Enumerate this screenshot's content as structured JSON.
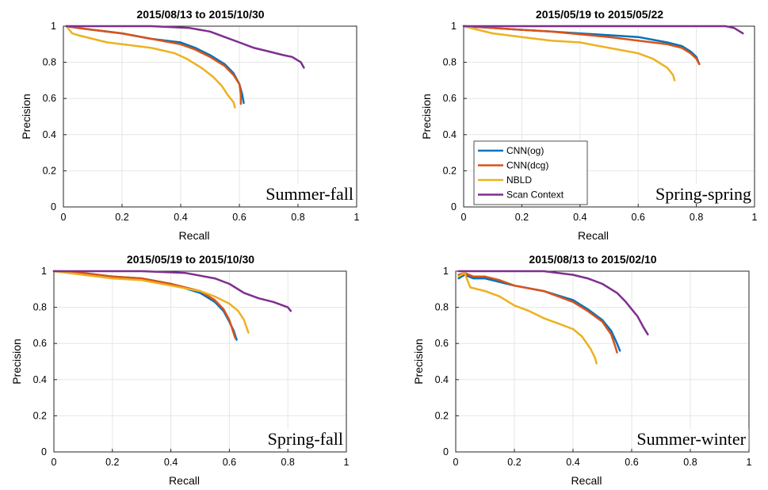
{
  "colors": {
    "cnn_og": "#0072BD",
    "cnn_dcg": "#D95319",
    "nbld": "#EDB120",
    "scan_context": "#7E2F8E",
    "grid": "#e6e6e6",
    "axis": "#262626"
  },
  "chart_data": [
    {
      "type": "line",
      "title": "2015/08/13 to 2015/10/30",
      "annotation": "Summer-fall",
      "xlabel": "Recall",
      "ylabel": "Precision",
      "xlim": [
        0,
        1
      ],
      "ylim": [
        0,
        1
      ],
      "xticks": [
        "0",
        "0.2",
        "0.4",
        "0.6",
        "0.8",
        "1"
      ],
      "yticks": [
        "0",
        "0.2",
        "0.4",
        "0.6",
        "0.8",
        "1"
      ],
      "legend": null,
      "series": [
        {
          "name": "CNN(og)",
          "color_key": "cnn_og",
          "points": [
            [
              0.01,
              1.0
            ],
            [
              0.05,
              0.99
            ],
            [
              0.1,
              0.98
            ],
            [
              0.2,
              0.96
            ],
            [
              0.3,
              0.93
            ],
            [
              0.4,
              0.91
            ],
            [
              0.45,
              0.88
            ],
            [
              0.5,
              0.84
            ],
            [
              0.55,
              0.79
            ],
            [
              0.58,
              0.74
            ],
            [
              0.6,
              0.68
            ],
            [
              0.61,
              0.62
            ],
            [
              0.615,
              0.575
            ]
          ]
        },
        {
          "name": "CNN(dcg)",
          "color_key": "cnn_dcg",
          "points": [
            [
              0.01,
              1.0
            ],
            [
              0.05,
              0.99
            ],
            [
              0.1,
              0.98
            ],
            [
              0.2,
              0.96
            ],
            [
              0.3,
              0.93
            ],
            [
              0.4,
              0.9
            ],
            [
              0.45,
              0.87
            ],
            [
              0.5,
              0.83
            ],
            [
              0.55,
              0.78
            ],
            [
              0.58,
              0.73
            ],
            [
              0.6,
              0.68
            ],
            [
              0.605,
              0.62
            ],
            [
              0.605,
              0.57
            ]
          ]
        },
        {
          "name": "NBLD",
          "color_key": "nbld",
          "points": [
            [
              0.01,
              1.0
            ],
            [
              0.03,
              0.96
            ],
            [
              0.05,
              0.95
            ],
            [
              0.1,
              0.93
            ],
            [
              0.15,
              0.91
            ],
            [
              0.2,
              0.9
            ],
            [
              0.3,
              0.88
            ],
            [
              0.38,
              0.85
            ],
            [
              0.42,
              0.82
            ],
            [
              0.47,
              0.77
            ],
            [
              0.51,
              0.72
            ],
            [
              0.54,
              0.67
            ],
            [
              0.56,
              0.62
            ],
            [
              0.58,
              0.58
            ],
            [
              0.585,
              0.55
            ]
          ]
        },
        {
          "name": "Scan Context",
          "color_key": "scan_context",
          "points": [
            [
              0.01,
              1.0
            ],
            [
              0.3,
              1.0
            ],
            [
              0.43,
              0.99
            ],
            [
              0.5,
              0.97
            ],
            [
              0.55,
              0.94
            ],
            [
              0.6,
              0.91
            ],
            [
              0.65,
              0.88
            ],
            [
              0.7,
              0.86
            ],
            [
              0.75,
              0.84
            ],
            [
              0.78,
              0.83
            ],
            [
              0.81,
              0.8
            ],
            [
              0.82,
              0.77
            ]
          ]
        }
      ]
    },
    {
      "type": "line",
      "title": "2015/05/19 to 2015/05/22",
      "annotation": "Spring-spring",
      "xlabel": "Recall",
      "ylabel": "Precision",
      "xlim": [
        0,
        1
      ],
      "ylim": [
        0,
        1
      ],
      "xticks": [
        "0",
        "0.2",
        "0.4",
        "0.6",
        "0.8",
        "1"
      ],
      "yticks": [
        "0",
        "0.2",
        "0.4",
        "0.6",
        "0.8",
        "1"
      ],
      "legend": "center-left",
      "series": [
        {
          "name": "CNN(og)",
          "color_key": "cnn_og",
          "points": [
            [
              0.0,
              1.0
            ],
            [
              0.1,
              0.99
            ],
            [
              0.2,
              0.98
            ],
            [
              0.3,
              0.97
            ],
            [
              0.4,
              0.96
            ],
            [
              0.5,
              0.95
            ],
            [
              0.6,
              0.94
            ],
            [
              0.7,
              0.91
            ],
            [
              0.75,
              0.89
            ],
            [
              0.78,
              0.86
            ],
            [
              0.8,
              0.83
            ],
            [
              0.81,
              0.79
            ]
          ]
        },
        {
          "name": "CNN(dcg)",
          "color_key": "cnn_dcg",
          "points": [
            [
              0.0,
              1.0
            ],
            [
              0.1,
              0.99
            ],
            [
              0.2,
              0.98
            ],
            [
              0.3,
              0.97
            ],
            [
              0.4,
              0.955
            ],
            [
              0.5,
              0.94
            ],
            [
              0.6,
              0.92
            ],
            [
              0.7,
              0.9
            ],
            [
              0.75,
              0.88
            ],
            [
              0.78,
              0.85
            ],
            [
              0.8,
              0.82
            ],
            [
              0.81,
              0.79
            ]
          ]
        },
        {
          "name": "NBLD",
          "color_key": "nbld",
          "points": [
            [
              0.0,
              1.0
            ],
            [
              0.05,
              0.98
            ],
            [
              0.1,
              0.96
            ],
            [
              0.2,
              0.94
            ],
            [
              0.3,
              0.92
            ],
            [
              0.4,
              0.91
            ],
            [
              0.5,
              0.88
            ],
            [
              0.6,
              0.85
            ],
            [
              0.65,
              0.82
            ],
            [
              0.7,
              0.77
            ],
            [
              0.72,
              0.73
            ],
            [
              0.725,
              0.7
            ]
          ]
        },
        {
          "name": "Scan Context",
          "color_key": "scan_context",
          "points": [
            [
              0.0,
              1.0
            ],
            [
              0.9,
              1.0
            ],
            [
              0.93,
              0.99
            ],
            [
              0.95,
              0.97
            ],
            [
              0.96,
              0.96
            ]
          ]
        }
      ]
    },
    {
      "type": "line",
      "title": "2015/05/19 to 2015/10/30",
      "annotation": "Spring-fall",
      "xlabel": "Recall",
      "ylabel": "Precision",
      "xlim": [
        0,
        1
      ],
      "ylim": [
        0,
        1
      ],
      "xticks": [
        "0",
        "0.2",
        "0.4",
        "0.6",
        "0.8",
        "1"
      ],
      "yticks": [
        "0",
        "0.2",
        "0.4",
        "0.6",
        "0.8",
        "1"
      ],
      "legend": null,
      "series": [
        {
          "name": "CNN(og)",
          "color_key": "cnn_og",
          "points": [
            [
              0.0,
              1.0
            ],
            [
              0.1,
              0.99
            ],
            [
              0.2,
              0.97
            ],
            [
              0.3,
              0.96
            ],
            [
              0.4,
              0.93
            ],
            [
              0.5,
              0.88
            ],
            [
              0.55,
              0.83
            ],
            [
              0.58,
              0.78
            ],
            [
              0.6,
              0.72
            ],
            [
              0.615,
              0.67
            ],
            [
              0.625,
              0.62
            ]
          ]
        },
        {
          "name": "CNN(dcg)",
          "color_key": "cnn_dcg",
          "points": [
            [
              0.0,
              1.0
            ],
            [
              0.1,
              0.99
            ],
            [
              0.2,
              0.97
            ],
            [
              0.3,
              0.96
            ],
            [
              0.4,
              0.93
            ],
            [
              0.5,
              0.89
            ],
            [
              0.55,
              0.84
            ],
            [
              0.58,
              0.79
            ],
            [
              0.6,
              0.73
            ],
            [
              0.61,
              0.68
            ],
            [
              0.62,
              0.63
            ]
          ]
        },
        {
          "name": "NBLD",
          "color_key": "nbld",
          "points": [
            [
              0.0,
              1.0
            ],
            [
              0.1,
              0.98
            ],
            [
              0.2,
              0.96
            ],
            [
              0.3,
              0.95
            ],
            [
              0.4,
              0.92
            ],
            [
              0.5,
              0.89
            ],
            [
              0.55,
              0.86
            ],
            [
              0.6,
              0.82
            ],
            [
              0.63,
              0.78
            ],
            [
              0.65,
              0.73
            ],
            [
              0.665,
              0.66
            ]
          ]
        },
        {
          "name": "Scan Context",
          "color_key": "scan_context",
          "points": [
            [
              0.0,
              1.0
            ],
            [
              0.3,
              1.0
            ],
            [
              0.45,
              0.99
            ],
            [
              0.55,
              0.96
            ],
            [
              0.6,
              0.93
            ],
            [
              0.65,
              0.88
            ],
            [
              0.7,
              0.85
            ],
            [
              0.75,
              0.83
            ],
            [
              0.8,
              0.8
            ],
            [
              0.81,
              0.78
            ]
          ]
        }
      ]
    },
    {
      "type": "line",
      "title": "2015/08/13 to 2015/02/10",
      "annotation": "Summer-winter",
      "xlabel": "Recall",
      "ylabel": "Precision",
      "xlim": [
        0,
        1
      ],
      "ylim": [
        0,
        1
      ],
      "xticks": [
        "0",
        "0.2",
        "0.4",
        "0.6",
        "0.8",
        "1"
      ],
      "yticks": [
        "0",
        "0.2",
        "0.4",
        "0.6",
        "0.8",
        "1"
      ],
      "legend": null,
      "series": [
        {
          "name": "CNN(og)",
          "color_key": "cnn_og",
          "points": [
            [
              0.01,
              0.96
            ],
            [
              0.03,
              0.98
            ],
            [
              0.06,
              0.96
            ],
            [
              0.1,
              0.96
            ],
            [
              0.15,
              0.94
            ],
            [
              0.2,
              0.92
            ],
            [
              0.3,
              0.89
            ],
            [
              0.4,
              0.84
            ],
            [
              0.45,
              0.79
            ],
            [
              0.5,
              0.73
            ],
            [
              0.53,
              0.67
            ],
            [
              0.55,
              0.6
            ],
            [
              0.56,
              0.56
            ]
          ]
        },
        {
          "name": "CNN(dcg)",
          "color_key": "cnn_dcg",
          "points": [
            [
              0.01,
              0.98
            ],
            [
              0.03,
              0.99
            ],
            [
              0.06,
              0.97
            ],
            [
              0.1,
              0.97
            ],
            [
              0.15,
              0.95
            ],
            [
              0.2,
              0.92
            ],
            [
              0.3,
              0.89
            ],
            [
              0.4,
              0.83
            ],
            [
              0.45,
              0.78
            ],
            [
              0.5,
              0.72
            ],
            [
              0.53,
              0.65
            ],
            [
              0.545,
              0.58
            ],
            [
              0.55,
              0.55
            ]
          ]
        },
        {
          "name": "NBLD",
          "color_key": "nbld",
          "points": [
            [
              0.01,
              0.97
            ],
            [
              0.03,
              0.99
            ],
            [
              0.05,
              0.91
            ],
            [
              0.1,
              0.89
            ],
            [
              0.15,
              0.86
            ],
            [
              0.2,
              0.81
            ],
            [
              0.25,
              0.78
            ],
            [
              0.3,
              0.74
            ],
            [
              0.35,
              0.71
            ],
            [
              0.4,
              0.68
            ],
            [
              0.43,
              0.64
            ],
            [
              0.46,
              0.57
            ],
            [
              0.475,
              0.52
            ],
            [
              0.48,
              0.49
            ]
          ]
        },
        {
          "name": "Scan Context",
          "color_key": "scan_context",
          "points": [
            [
              0.01,
              1.0
            ],
            [
              0.3,
              1.0
            ],
            [
              0.4,
              0.98
            ],
            [
              0.45,
              0.96
            ],
            [
              0.5,
              0.93
            ],
            [
              0.55,
              0.88
            ],
            [
              0.58,
              0.83
            ],
            [
              0.6,
              0.79
            ],
            [
              0.62,
              0.75
            ],
            [
              0.64,
              0.69
            ],
            [
              0.655,
              0.65
            ]
          ]
        }
      ]
    }
  ]
}
